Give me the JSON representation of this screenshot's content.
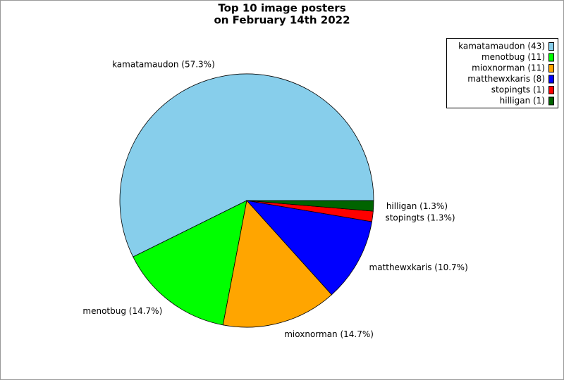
{
  "chart_data": {
    "type": "pie",
    "title": [
      "Top 10 image posters",
      "on February 14th 2022"
    ],
    "values": [
      43,
      11,
      11,
      8,
      1,
      1
    ],
    "value_labels": [
      "kamatamaudon (57.3%)",
      "menotbug (14.7%)",
      "mioxnorman (14.7%)",
      "matthewxkaris (10.7%)",
      "stopingts (1.3%)",
      "hilligan (1.3%)"
    ],
    "legend_labels": [
      "kamatamaudon (43)",
      "menotbug (11)",
      "mioxnorman (11)",
      "matthewxkaris (8)",
      "stopingts (1)",
      "hilligan (1)"
    ],
    "colors": [
      "#87ceeb",
      "#00ff00",
      "#ffa500",
      "#0000ff",
      "#ff0000",
      "#006400"
    ],
    "legend": "upper right"
  }
}
